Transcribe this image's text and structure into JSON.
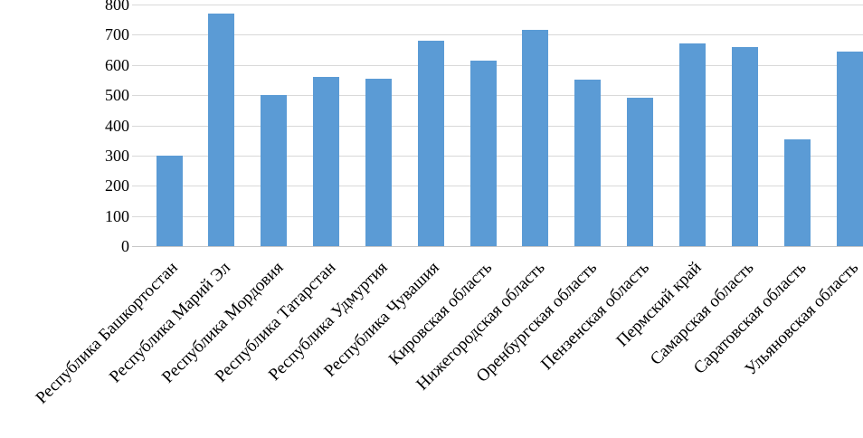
{
  "chart_data": {
    "type": "bar",
    "title": "",
    "xlabel": "",
    "ylabel": "",
    "categories": [
      "Республика Башкортостан",
      "Республика Марий Эл",
      "Республика Мордовия",
      "Республика Татарстан",
      "Республика Удмуртия",
      "Республика Чувашия",
      "Кировская область",
      "Нижегородская область",
      "Оренбургская область",
      "Пензенская область",
      "Пермский край",
      "Самарская область",
      "Саратовская область",
      "Ульяновская область"
    ],
    "values": [
      300,
      770,
      500,
      560,
      555,
      680,
      615,
      715,
      550,
      490,
      670,
      660,
      355,
      645
    ],
    "ylim": [
      0,
      800
    ],
    "yticks": [
      0,
      100,
      200,
      300,
      400,
      500,
      600,
      700,
      800
    ],
    "grid": true,
    "legend": "none",
    "x_label_rotation_deg": 45,
    "colors": {
      "bar": "#5B9BD5",
      "gridline": "#D9D9D9",
      "axis_line": "#C6C6C6",
      "text": "#000000",
      "background": "#FFFFFF"
    }
  }
}
